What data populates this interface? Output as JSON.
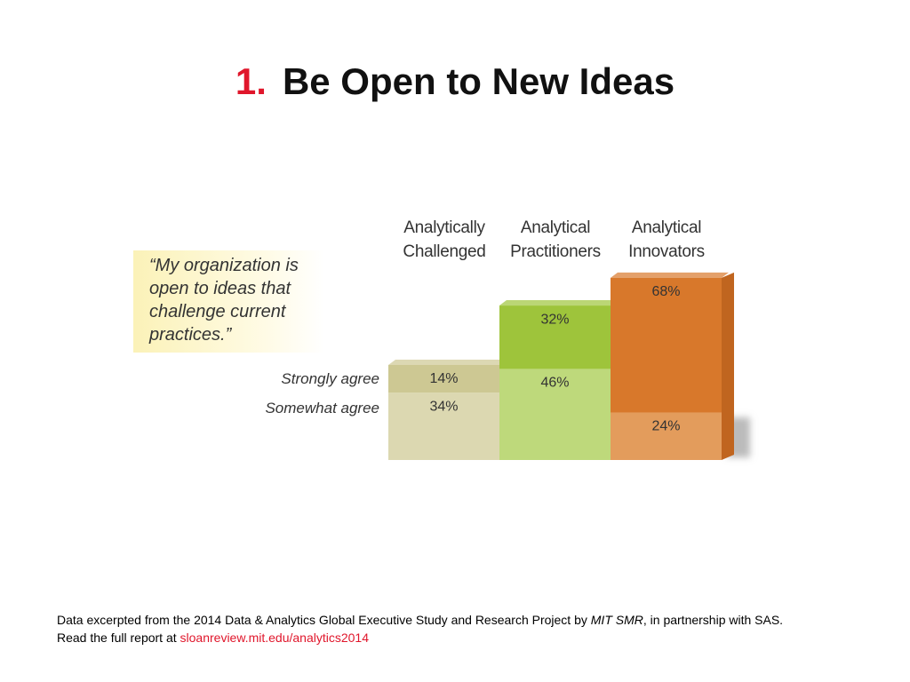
{
  "slide_title": {
    "number": "1.",
    "text": "Be Open to New Ideas"
  },
  "chart_data": {
    "type": "bar",
    "stacked": true,
    "quote": "“My organization is open to ideas that challenge current practices.”",
    "categories": [
      "Analytically Challenged",
      "Analytical Practitioners",
      "Analytical Innovators"
    ],
    "series": [
      {
        "name": "Somewhat agree",
        "colors": [
          "#dcd8b1",
          "#bed97b",
          "#e39c5c"
        ],
        "values": [
          34,
          46,
          24
        ],
        "value_labels": [
          "34%",
          "46%",
          "24%"
        ]
      },
      {
        "name": "Strongly agree",
        "colors": [
          "#cdc893",
          "#9ec43b",
          "#d8782b"
        ],
        "values": [
          14,
          32,
          68
        ],
        "value_labels": [
          "14%",
          "32%",
          "68%"
        ]
      }
    ]
  },
  "footer": {
    "line1": "Data excerpted from the 2014 Data & Analytics Global Executive Study and Research Project by ",
    "source": "MIT SMR",
    "line1_end": ", in partnership with SAS.",
    "line2": "Read the full report at ",
    "link": "sloanreview.mit.edu/analytics2014"
  }
}
